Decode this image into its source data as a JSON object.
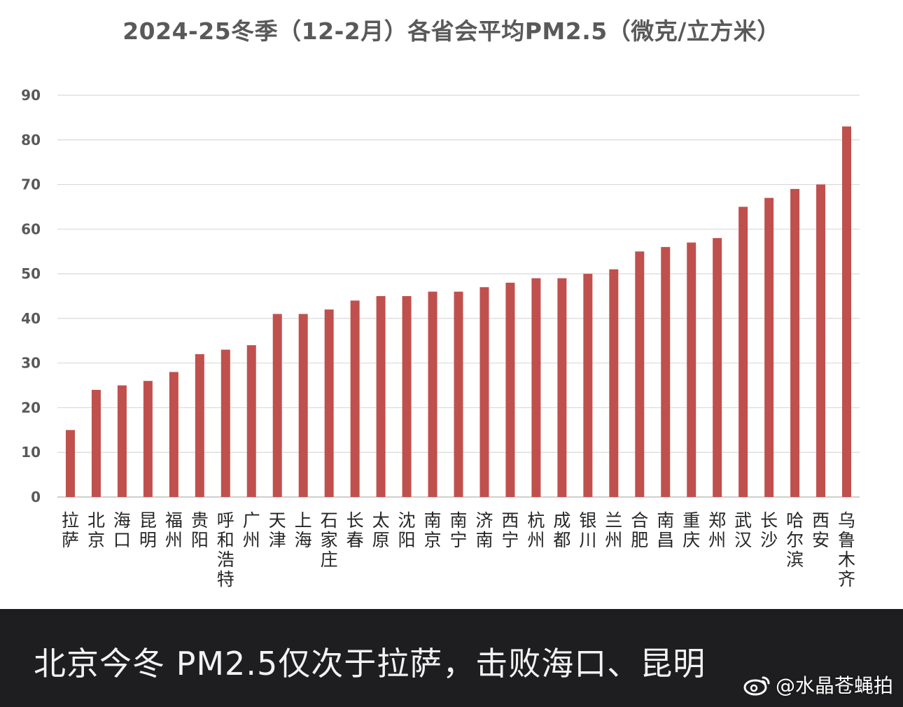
{
  "colors": {
    "bar": "#c0504d",
    "grid": "#d9d9d9",
    "axis": "#bfbfbf",
    "tick_text": "#595959",
    "category_text": "#262626",
    "title": "#595959",
    "caption_bg": "#1e1e20",
    "caption_text": "#f2f2f2"
  },
  "chart_data": {
    "type": "bar",
    "title": "2024-25冬季（12-2月）各省会平均PM2.5（微克/立方米）",
    "xlabel": "",
    "ylabel": "",
    "ylim": [
      0,
      90
    ],
    "yticks": [
      0,
      10,
      20,
      30,
      40,
      50,
      60,
      70,
      80,
      90
    ],
    "grid": true,
    "categories": [
      "拉萨",
      "北京",
      "海口",
      "昆明",
      "福州",
      "贵阳",
      "呼和浩特",
      "广州",
      "天津",
      "上海",
      "石家庄",
      "长春",
      "太原",
      "沈阳",
      "南京",
      "南宁",
      "济南",
      "西宁",
      "杭州",
      "成都",
      "银川",
      "兰州",
      "合肥",
      "南昌",
      "重庆",
      "郑州",
      "武汉",
      "长沙",
      "哈尔滨",
      "西安",
      "乌鲁木齐"
    ],
    "values": [
      15,
      24,
      25,
      26,
      28,
      32,
      33,
      34,
      41,
      41,
      42,
      44,
      45,
      45,
      46,
      46,
      47,
      48,
      49,
      49,
      50,
      51,
      55,
      56,
      57,
      58,
      65,
      67,
      69,
      70,
      83
    ]
  },
  "caption": "北京今冬 PM2.5仅次于拉萨，击败海口、昆明",
  "watermark": {
    "text": "@水晶苍蝇拍",
    "icon": "weibo-icon"
  }
}
